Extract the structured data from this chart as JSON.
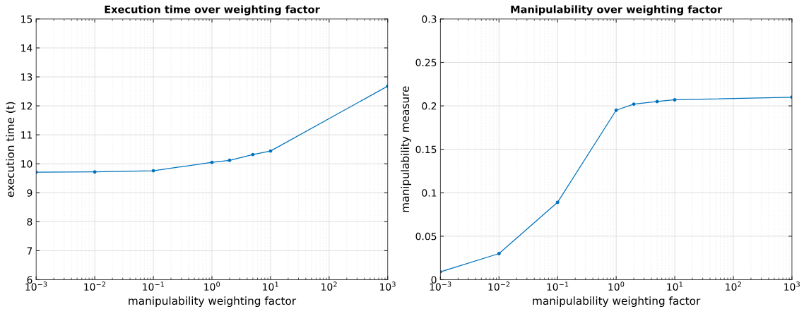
{
  "chart_data": [
    {
      "type": "line",
      "title": "Execution time over weighting factor",
      "xlabel": "manipulability weighting factor",
      "ylabel": "execution time (t)",
      "log": "x",
      "grid": true,
      "marker": "circle",
      "line_style": "solid",
      "x": [
        0.001,
        0.01,
        0.1,
        1,
        2,
        5,
        10,
        1000
      ],
      "series": [
        {
          "color": "#0072bd",
          "values": [
            9.71,
            9.72,
            9.76,
            10.05,
            10.12,
            10.32,
            10.44,
            12.68
          ]
        }
      ],
      "xlim": [
        0.001,
        1000
      ],
      "xticks": [
        {
          "value": 0.001,
          "label": "10$^{−3}$"
        },
        {
          "value": 0.01,
          "label": "10$^{−2}$"
        },
        {
          "value": 0.1,
          "label": "10$^{−1}$"
        },
        {
          "value": 1,
          "label": "10$^{0}$"
        },
        {
          "value": 10,
          "label": "10$^{1}$"
        },
        {
          "value": 100,
          "label": "10$^{2}$"
        },
        {
          "value": 1000,
          "label": "10$^{3}$"
        }
      ],
      "ylim": [
        6,
        15
      ],
      "yticks": [
        6,
        7,
        8,
        9,
        10,
        11,
        12,
        13,
        14,
        15
      ]
    },
    {
      "type": "line",
      "title": "Manipulability over weighting factor",
      "xlabel": "manipulability weighting factor",
      "ylabel": "manipulability measure",
      "log": "x",
      "grid": true,
      "marker": "circle",
      "line_style": "solid",
      "x": [
        0.001,
        0.01,
        0.1,
        1,
        2,
        5,
        10,
        1000
      ],
      "series": [
        {
          "color": "#0072bd",
          "values": [
            0.009,
            0.03,
            0.089,
            0.195,
            0.202,
            0.205,
            0.207,
            0.21
          ]
        }
      ],
      "xlim": [
        0.001,
        1000
      ],
      "xticks": [
        {
          "value": 0.001,
          "label": "10$^{−3}$"
        },
        {
          "value": 0.01,
          "label": "10$^{−2}$"
        },
        {
          "value": 0.1,
          "label": "10$^{−1}$"
        },
        {
          "value": 1,
          "label": "10$^{0}$"
        },
        {
          "value": 10,
          "label": "10$^{1}$"
        },
        {
          "value": 100,
          "label": "10$^{2}$"
        },
        {
          "value": 1000,
          "label": "10$^{3}$"
        }
      ],
      "ylim": [
        0,
        0.3
      ],
      "yticks": [
        0,
        0.05,
        0.1,
        0.15,
        0.2,
        0.25,
        0.3
      ]
    }
  ]
}
